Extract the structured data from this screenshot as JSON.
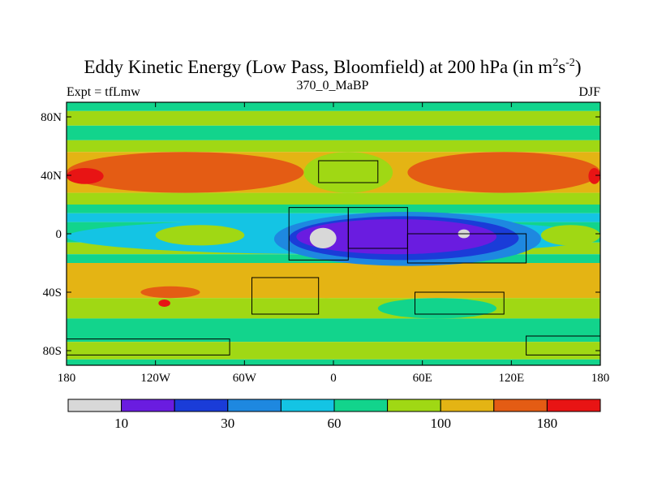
{
  "chart_data": {
    "type": "heatmap",
    "title": "Eddy Kinetic Energy (Low Pass, Bloomfield) at 200 hPa (in m",
    "title_units": {
      "m_exp": "2",
      "s": "s",
      "s_exp": "-2",
      "close": ")"
    },
    "subtitle_left": "Expt = tfLmw",
    "subtitle_center": "370_0_MaBP",
    "subtitle_right": "DJF",
    "xlim": [
      -180,
      180
    ],
    "ylim": [
      -90,
      90
    ],
    "x_ticks": [
      {
        "value": -180,
        "label": "180"
      },
      {
        "value": -120,
        "label": "120W"
      },
      {
        "value": -60,
        "label": "60W"
      },
      {
        "value": 0,
        "label": "0"
      },
      {
        "value": 60,
        "label": "60E"
      },
      {
        "value": 120,
        "label": "120E"
      },
      {
        "value": 180,
        "label": "180"
      }
    ],
    "y_ticks": [
      {
        "value": 80,
        "label": "80N"
      },
      {
        "value": 40,
        "label": "40N"
      },
      {
        "value": 0,
        "label": "0"
      },
      {
        "value": -40,
        "label": "40S"
      },
      {
        "value": -80,
        "label": "80S"
      }
    ],
    "colorbar": {
      "colors": [
        "#d8d8d8",
        "#6a1ce0",
        "#1a3cd8",
        "#1e88e0",
        "#14c4e4",
        "#12d48c",
        "#a0d814",
        "#e4b414",
        "#e45c14",
        "#e81414"
      ],
      "tick_labels": [
        {
          "after_box": 1,
          "label": "10"
        },
        {
          "after_box": 3,
          "label": "30"
        },
        {
          "after_box": 5,
          "label": "60"
        },
        {
          "after_box": 7,
          "label": "100"
        },
        {
          "after_box": 9,
          "label": "180"
        }
      ]
    },
    "zonal_bands": [
      {
        "lat": [
          90,
          84
        ],
        "level": 5
      },
      {
        "lat": [
          84,
          74
        ],
        "level": 6
      },
      {
        "lat": [
          74,
          64
        ],
        "level": 5
      },
      {
        "lat": [
          64,
          56
        ],
        "level": 6
      },
      {
        "lat": [
          56,
          28
        ],
        "level": 7
      },
      {
        "lat": [
          28,
          20
        ],
        "level": 6
      },
      {
        "lat": [
          20,
          14
        ],
        "level": 5
      },
      {
        "lat": [
          14,
          8
        ],
        "level": 4
      },
      {
        "lat": [
          8,
          -6
        ],
        "level": 5
      },
      {
        "lat": [
          -6,
          -14
        ],
        "level": 6
      },
      {
        "lat": [
          -14,
          -20
        ],
        "level": 5
      },
      {
        "lat": [
          -20,
          -44
        ],
        "level": 7
      },
      {
        "lat": [
          -44,
          -58
        ],
        "level": 6
      },
      {
        "lat": [
          -58,
          -74
        ],
        "level": 5
      },
      {
        "lat": [
          -74,
          -86
        ],
        "level": 6
      },
      {
        "lat": [
          -86,
          -90
        ],
        "level": 5
      }
    ],
    "features": [
      {
        "level": 8,
        "lon": [
          -180,
          -20
        ],
        "lat": [
          56,
          28
        ]
      },
      {
        "level": 8,
        "lon": [
          50,
          180
        ],
        "lat": [
          56,
          28
        ]
      },
      {
        "level": 9,
        "lon": [
          -180,
          -155
        ],
        "lat": [
          45,
          34
        ]
      },
      {
        "level": 9,
        "lon": [
          172,
          180
        ],
        "lat": [
          45,
          34
        ]
      },
      {
        "level": 6,
        "lon": [
          -20,
          40
        ],
        "lat": [
          56,
          28
        ]
      },
      {
        "level": 4,
        "lon": [
          -180,
          180
        ],
        "lat": [
          10,
          -14
        ]
      },
      {
        "level": 3,
        "lon": [
          -40,
          140
        ],
        "lat": [
          15,
          -22
        ]
      },
      {
        "level": 2,
        "lon": [
          -30,
          125
        ],
        "lat": [
          12,
          -18
        ]
      },
      {
        "level": 1,
        "lon": [
          -25,
          110
        ],
        "lat": [
          10,
          -14
        ]
      },
      {
        "level": 0,
        "lon": [
          -16,
          2
        ],
        "lat": [
          4,
          -10
        ]
      },
      {
        "level": 0,
        "lon": [
          84,
          92
        ],
        "lat": [
          3,
          -3
        ]
      },
      {
        "level": 6,
        "lon": [
          -120,
          -60
        ],
        "lat": [
          6,
          -8
        ]
      },
      {
        "level": 6,
        "lon": [
          140,
          180
        ],
        "lat": [
          6,
          -8
        ]
      },
      {
        "level": 8,
        "lon": [
          -130,
          -90
        ],
        "lat": [
          -36,
          -44
        ]
      },
      {
        "level": 9,
        "lon": [
          -118,
          -110
        ],
        "lat": [
          -45,
          -50
        ]
      },
      {
        "level": 5,
        "lon": [
          30,
          110
        ],
        "lat": [
          -44,
          -58
        ]
      },
      {
        "level": 7,
        "lon": [
          -40,
          30
        ],
        "lat": [
          -20,
          -44
        ]
      }
    ],
    "land_outlines": [
      [
        [
          -30,
          18
        ],
        [
          10,
          18
        ],
        [
          10,
          -18
        ],
        [
          -30,
          -18
        ]
      ],
      [
        [
          -10,
          50
        ],
        [
          30,
          50
        ],
        [
          30,
          35
        ],
        [
          -10,
          35
        ]
      ],
      [
        [
          10,
          18
        ],
        [
          50,
          18
        ],
        [
          50,
          -10
        ],
        [
          10,
          -10
        ]
      ],
      [
        [
          50,
          0
        ],
        [
          130,
          0
        ],
        [
          130,
          -20
        ],
        [
          50,
          -20
        ]
      ],
      [
        [
          -55,
          -30
        ],
        [
          -10,
          -30
        ],
        [
          -10,
          -55
        ],
        [
          -55,
          -55
        ]
      ],
      [
        [
          55,
          -40
        ],
        [
          115,
          -40
        ],
        [
          115,
          -55
        ],
        [
          55,
          -55
        ]
      ],
      [
        [
          -180,
          -72
        ],
        [
          -70,
          -72
        ],
        [
          -70,
          -83
        ],
        [
          -180,
          -83
        ]
      ],
      [
        [
          130,
          -70
        ],
        [
          180,
          -70
        ],
        [
          180,
          -83
        ],
        [
          130,
          -83
        ]
      ]
    ]
  }
}
